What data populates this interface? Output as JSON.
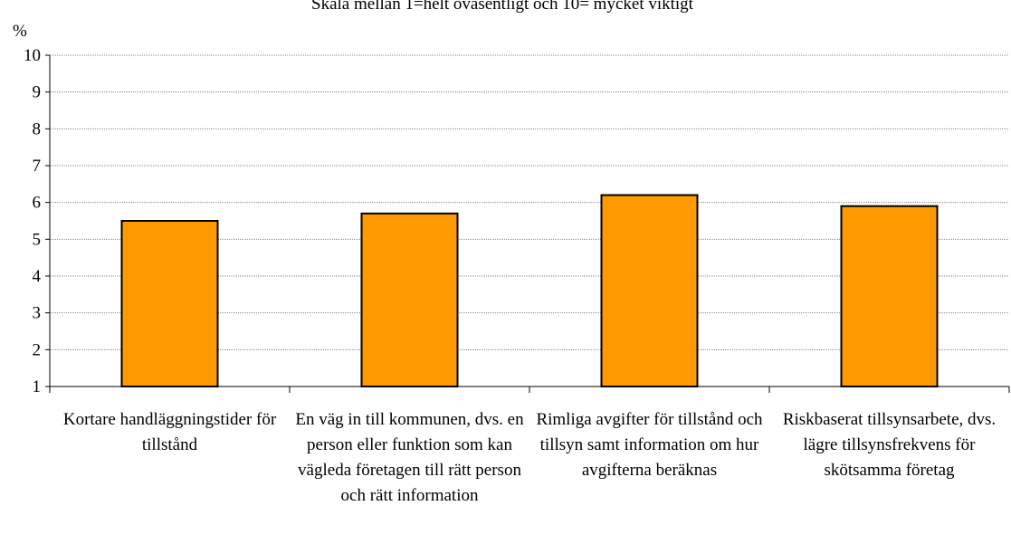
{
  "chart_data": {
    "type": "bar",
    "title": "Skala mellan 1=helt oväsentligt och 10= mycket viktigt",
    "y_label": "%",
    "categories": [
      "Kortare handläggningstider för tillstånd",
      "En väg in till kommunen, dvs. en person eller funktion som kan vägleda företagen till rätt person och rätt information",
      "Rimliga avgifter för tillstånd och tillsyn samt information om hur avgifterna beräknas",
      "Riskbaserat tillsynsarbete, dvs. lägre tillsynsfrekvens för skötsamma företag"
    ],
    "values": [
      5.5,
      5.7,
      6.2,
      5.9
    ],
    "color": "#ff9900",
    "ylim": [
      1,
      10
    ],
    "yticks": [
      1,
      2,
      3,
      4,
      5,
      6,
      7,
      8,
      9,
      10
    ],
    "grid": true
  }
}
